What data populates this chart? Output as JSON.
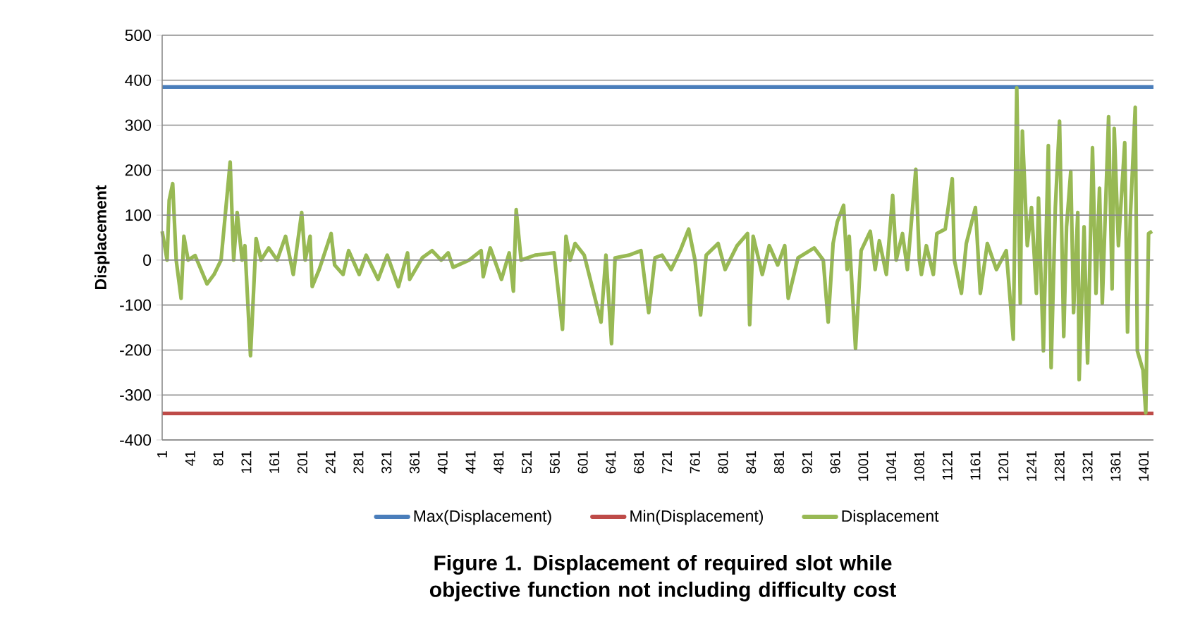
{
  "chart_data": {
    "type": "line",
    "title": "Figure 1. Displacement of required slot while objective function not including difficulty cost",
    "ylabel": "Displacement",
    "xlim": [
      1,
      1415
    ],
    "ylim": [
      -400,
      500
    ],
    "xticks": [
      1,
      41,
      81,
      121,
      161,
      201,
      241,
      281,
      321,
      361,
      401,
      441,
      481,
      521,
      561,
      601,
      641,
      681,
      721,
      761,
      801,
      841,
      881,
      921,
      961,
      1001,
      1041,
      1081,
      1121,
      1161,
      1201,
      1241,
      1281,
      1321,
      1361,
      1401
    ],
    "yticks": [
      -400,
      -300,
      -200,
      -100,
      0,
      100,
      200,
      300,
      400,
      500
    ],
    "grid": "y",
    "legend": "bottom",
    "marker": "none",
    "line_style": "solid",
    "series": [
      {
        "name": "Max(Displacement)",
        "color": "#4a7ebb",
        "x": [
          1,
          1415
        ],
        "values": [
          385,
          385
        ]
      },
      {
        "name": "Min(Displacement)",
        "color": "#be4b48",
        "x": [
          1,
          1415
        ],
        "values": [
          -341,
          -341
        ]
      },
      {
        "name": "Displacement",
        "color": "#98b954",
        "x": [
          1,
          8,
          11,
          16,
          21,
          28,
          32,
          38,
          48,
          65,
          75,
          85,
          98,
          103,
          108,
          115,
          119,
          127,
          135,
          142,
          153,
          165,
          177,
          188,
          200,
          205,
          212,
          215,
          225,
          242,
          247,
          259,
          267,
          282,
          292,
          309,
          322,
          338,
          351,
          354,
          372,
          386,
          399,
          409,
          416,
          439,
          456,
          459,
          469,
          485,
          496,
          502,
          506,
          513,
          533,
          560,
          572,
          577,
          583,
          590,
          603,
          627,
          634,
          642,
          647,
          667,
          684,
          695,
          704,
          714,
          727,
          740,
          752,
          761,
          769,
          777,
          794,
          804,
          821,
          836,
          839,
          844,
          857,
          867,
          879,
          889,
          894,
          908,
          931,
          944,
          951,
          958,
          964,
          973,
          978,
          981,
          990,
          998,
          1011,
          1018,
          1024,
          1034,
          1043,
          1048,
          1057,
          1064,
          1076,
          1081,
          1084,
          1091,
          1101,
          1106,
          1118,
          1128,
          1131,
          1141,
          1148,
          1161,
          1168,
          1178,
          1191,
          1205,
          1215,
          1220,
          1225,
          1228,
          1235,
          1241,
          1248,
          1251,
          1258,
          1265,
          1269,
          1275,
          1281,
          1287,
          1291,
          1297,
          1301,
          1307,
          1309,
          1316,
          1321,
          1328,
          1333,
          1338,
          1342,
          1351,
          1356,
          1359,
          1365,
          1374,
          1378,
          1382,
          1389,
          1392,
          1400,
          1404,
          1408,
          1413
        ],
        "values": [
          64,
          0,
          133,
          170,
          0,
          -85,
          53,
          0,
          10,
          -53,
          -32,
          0,
          218,
          0,
          106,
          0,
          32,
          -213,
          48,
          0,
          27,
          0,
          53,
          -32,
          106,
          0,
          53,
          -59,
          -21,
          59,
          -11,
          -32,
          21,
          -32,
          11,
          -43,
          11,
          -59,
          16,
          -43,
          5,
          21,
          0,
          16,
          -16,
          0,
          21,
          -37,
          27,
          -43,
          16,
          -69,
          112,
          0,
          11,
          16,
          -154,
          53,
          0,
          37,
          11,
          -138,
          11,
          -186,
          5,
          11,
          21,
          -117,
          5,
          11,
          -21,
          21,
          69,
          0,
          -122,
          11,
          37,
          -21,
          32,
          59,
          -144,
          53,
          -32,
          32,
          -11,
          32,
          -85,
          5,
          27,
          0,
          -138,
          37,
          85,
          122,
          -21,
          53,
          -197,
          21,
          64,
          -21,
          43,
          -32,
          144,
          0,
          59,
          -21,
          202,
          0,
          -32,
          32,
          -32,
          59,
          69,
          181,
          0,
          -74,
          37,
          117,
          -74,
          37,
          -21,
          21,
          -176,
          383,
          -96,
          287,
          32,
          117,
          -74,
          138,
          -202,
          255,
          -239,
          117,
          309,
          -170,
          74,
          197,
          -117,
          106,
          -266,
          74,
          -229,
          250,
          -74,
          160,
          -96,
          319,
          -64,
          293,
          32,
          261,
          -160,
          96,
          340,
          -202,
          -245,
          -340,
          59,
          64
        ]
      }
    ]
  }
}
